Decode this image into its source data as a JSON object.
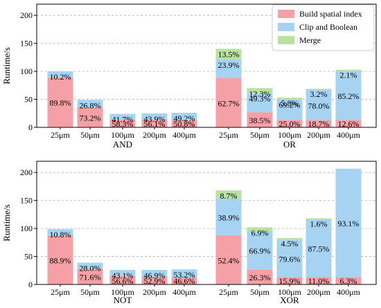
{
  "chart_data": [
    {
      "type": "bar",
      "stacked": true,
      "ylabel": "Runtime/s",
      "ylim": [
        0,
        220
      ],
      "yticks": [
        0,
        50,
        100,
        150,
        200
      ],
      "grid": "horizontal dashed",
      "legend_position": "top-right",
      "legend": [
        "Build spatial index",
        "Clip and Boolean",
        "Merge"
      ],
      "colors": {
        "Build spatial index": "#f4a0a6",
        "Clip and Boolean": "#a7d3f2",
        "Merge": "#b8e2a2"
      },
      "groups": [
        {
          "name": "AND",
          "categories": [
            "25μm",
            "50μm",
            "100μm",
            "200μm",
            "400μm"
          ],
          "totals": [
            100,
            49,
            24,
            25,
            26
          ],
          "series": [
            {
              "name": "Build spatial index",
              "percent": [
                89.8,
                73.2,
                58.3,
                56.1,
                50.8
              ]
            },
            {
              "name": "Clip and Boolean",
              "percent": [
                10.2,
                26.8,
                41.7,
                43.9,
                49.2
              ]
            },
            {
              "name": "Merge",
              "percent": [
                null,
                null,
                null,
                null,
                null
              ]
            }
          ]
        },
        {
          "name": "OR",
          "categories": [
            "25μm",
            "50μm",
            "100μm",
            "200μm",
            "400μm"
          ],
          "totals": [
            140,
            70,
            53,
            69,
            103
          ],
          "series": [
            {
              "name": "Build spatial index",
              "percent": [
                62.7,
                38.5,
                25.0,
                18.7,
                12.6
              ]
            },
            {
              "name": "Clip and Boolean",
              "percent": [
                23.9,
                49.3,
                69.2,
                78.0,
                85.2
              ]
            },
            {
              "name": "Merge",
              "percent": [
                13.5,
                12.3,
                5.8,
                3.2,
                2.1
              ]
            }
          ]
        }
      ]
    },
    {
      "type": "bar",
      "stacked": true,
      "ylabel": "Runtime/s",
      "ylim": [
        0,
        220
      ],
      "yticks": [
        0,
        50,
        100,
        150,
        200
      ],
      "grid": "horizontal dashed",
      "groups": [
        {
          "name": "NOT",
          "categories": [
            "25μm",
            "50μm",
            "100μm",
            "200μm",
            "400μm"
          ],
          "totals": [
            99,
            39,
            26,
            26,
            27
          ],
          "series": [
            {
              "name": "Build spatial index",
              "percent": [
                88.9,
                71.6,
                56.6,
                52.9,
                46.6
              ]
            },
            {
              "name": "Clip and Boolean",
              "percent": [
                10.8,
                28.0,
                43.1,
                46.9,
                53.2
              ]
            },
            {
              "name": "Merge",
              "percent": [
                null,
                null,
                null,
                null,
                null
              ]
            }
          ]
        },
        {
          "name": "XOR",
          "categories": [
            "25μm",
            "50μm",
            "100μm",
            "200μm",
            "400μm"
          ],
          "totals": [
            168,
            102,
            83,
            118,
            208
          ],
          "series": [
            {
              "name": "Build spatial index",
              "percent": [
                52.4,
                26.3,
                15.9,
                11.0,
                6.3
              ]
            },
            {
              "name": "Clip and Boolean",
              "percent": [
                38.9,
                66.9,
                79.6,
                87.5,
                93.1
              ]
            },
            {
              "name": "Merge",
              "percent": [
                8.7,
                6.9,
                4.5,
                1.6,
                null
              ]
            }
          ]
        }
      ]
    }
  ]
}
